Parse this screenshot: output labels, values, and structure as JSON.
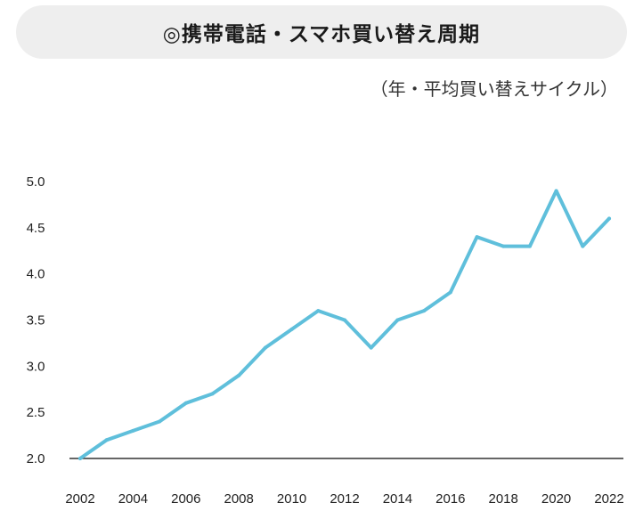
{
  "header": {
    "title": "◎携帯電話・スマホ買い替え周期",
    "unit_note": "（年・平均買い替えサイクル）"
  },
  "colors": {
    "line": "#5fbfdb",
    "axis": "#333333",
    "title_background": "#eeeeee"
  },
  "chart_data": {
    "type": "line",
    "title": "◎携帯電話・スマホ買い替え周期",
    "ylabel": "",
    "xlabel": "",
    "ylim": [
      2.0,
      5.0
    ],
    "y_ticks": [
      "2.0",
      "2.5",
      "3.0",
      "3.5",
      "4.0",
      "4.5",
      "5.0"
    ],
    "x_ticks": [
      "2002",
      "2004",
      "2006",
      "2008",
      "2010",
      "2012",
      "2014",
      "2016",
      "2018",
      "2020",
      "2022"
    ],
    "grid": false,
    "x": [
      2002,
      2003,
      2004,
      2005,
      2006,
      2007,
      2008,
      2009,
      2010,
      2011,
      2012,
      2013,
      2014,
      2015,
      2016,
      2017,
      2018,
      2019,
      2020,
      2021,
      2022
    ],
    "series": [
      {
        "values": [
          2.0,
          2.2,
          2.3,
          2.4,
          2.6,
          2.7,
          2.9,
          3.2,
          3.4,
          3.6,
          3.5,
          3.2,
          3.5,
          3.6,
          3.8,
          4.4,
          4.3,
          4.3,
          4.9,
          4.3,
          4.6
        ]
      }
    ]
  }
}
